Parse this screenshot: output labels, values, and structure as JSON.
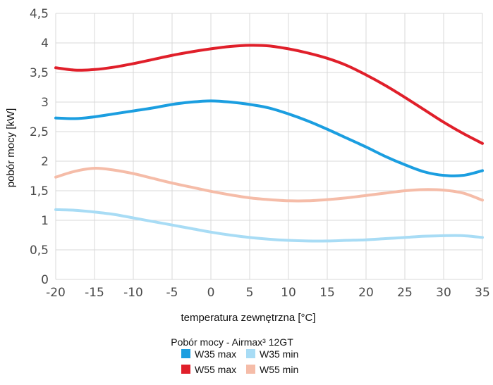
{
  "chart_data": {
    "type": "line",
    "xlabel": "temperatura zewnętrzna [°C]",
    "ylabel": "pobór mocy [kW]",
    "legend_title": "Pobór mocy - Airmax³ 12GT",
    "legend_position": "bottom",
    "grid": true,
    "xlim": [
      -20,
      35
    ],
    "ylim": [
      0,
      4.5
    ],
    "x_ticks": [
      "-20",
      "-15",
      "-10",
      "-5",
      "0",
      "5",
      "10",
      "15",
      "20",
      "25",
      "30",
      "35"
    ],
    "y_ticks": [
      "0",
      "0,5",
      "1",
      "1,5",
      "2",
      "2,5",
      "3",
      "3,5",
      "4",
      "4,5"
    ],
    "x": [
      -20,
      -17.5,
      -15,
      -12.5,
      -10,
      -7.5,
      -5,
      -2.5,
      0,
      2.5,
      5,
      7.5,
      10,
      12.5,
      15,
      17.5,
      20,
      22.5,
      25,
      27.5,
      30,
      32.5,
      35
    ],
    "series": [
      {
        "name": "W35 max",
        "color": "#1b9ee0",
        "values": [
          2.73,
          2.72,
          2.75,
          2.8,
          2.85,
          2.9,
          2.96,
          3.0,
          3.02,
          3.0,
          2.96,
          2.9,
          2.8,
          2.68,
          2.54,
          2.39,
          2.24,
          2.08,
          1.94,
          1.82,
          1.76,
          1.76,
          1.84
        ]
      },
      {
        "name": "W35 min",
        "color": "#a8dcf5",
        "values": [
          1.18,
          1.17,
          1.14,
          1.1,
          1.04,
          0.98,
          0.92,
          0.86,
          0.8,
          0.75,
          0.71,
          0.68,
          0.66,
          0.65,
          0.65,
          0.66,
          0.67,
          0.69,
          0.71,
          0.73,
          0.74,
          0.74,
          0.71
        ]
      },
      {
        "name": "W55 max",
        "color": "#e01f2a",
        "values": [
          3.58,
          3.54,
          3.55,
          3.59,
          3.65,
          3.72,
          3.79,
          3.85,
          3.9,
          3.94,
          3.96,
          3.95,
          3.9,
          3.83,
          3.74,
          3.62,
          3.46,
          3.28,
          3.08,
          2.87,
          2.66,
          2.47,
          2.3
        ]
      },
      {
        "name": "W55 min",
        "color": "#f5bca8",
        "values": [
          1.73,
          1.83,
          1.88,
          1.85,
          1.79,
          1.71,
          1.63,
          1.56,
          1.49,
          1.43,
          1.38,
          1.35,
          1.33,
          1.33,
          1.35,
          1.38,
          1.42,
          1.46,
          1.5,
          1.52,
          1.51,
          1.46,
          1.34
        ]
      }
    ]
  }
}
